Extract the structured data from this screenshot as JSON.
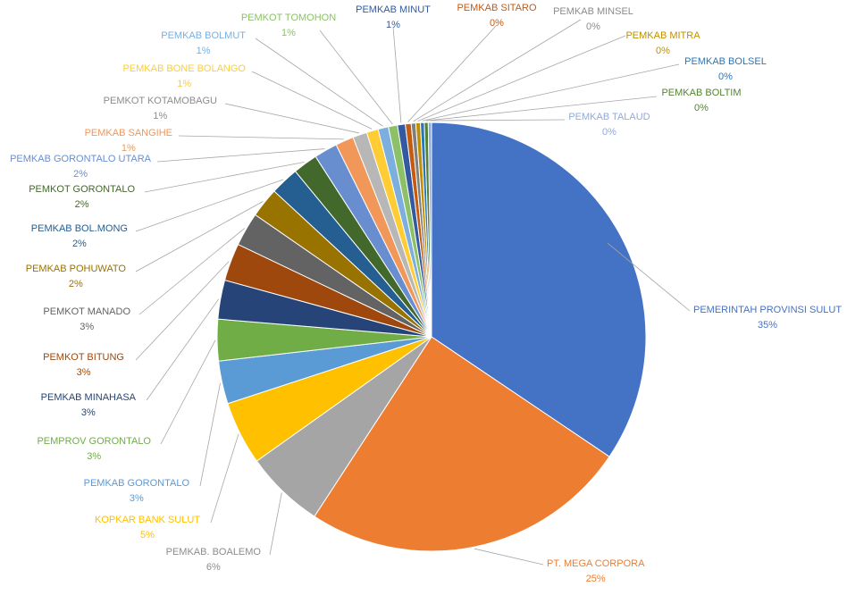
{
  "chart_data": {
    "type": "pie",
    "title": "",
    "legend": "none",
    "slices": [
      {
        "label": "PEMERINTAH PROVINSI SULUT",
        "pct_label": "35%",
        "value": 35.2,
        "color": "#4472C4"
      },
      {
        "label": "PT. MEGA CORPORA",
        "pct_label": "25%",
        "value": 25.3,
        "color": "#ED7D31"
      },
      {
        "label": "PEMKAB. BOALEMO",
        "pct_label": "6%",
        "value": 6.1,
        "color": "#A5A5A5"
      },
      {
        "label": "KOPKAR BANK SULUT",
        "pct_label": "5%",
        "value": 4.9,
        "color": "#FFC000"
      },
      {
        "label": "PEMKAB GORONTALO",
        "pct_label": "3%",
        "value": 3.3,
        "color": "#5B9BD5"
      },
      {
        "label": "PEMPROV GORONTALO",
        "pct_label": "3%",
        "value": 3.2,
        "color": "#70AD47"
      },
      {
        "label": "PEMKAB MINAHASA",
        "pct_label": "3%",
        "value": 3.0,
        "color": "#264478"
      },
      {
        "label": "PEMKOT BITUNG",
        "pct_label": "3%",
        "value": 2.9,
        "color": "#9E480E"
      },
      {
        "label": "PEMKOT MANADO",
        "pct_label": "3%",
        "value": 2.6,
        "color": "#636363"
      },
      {
        "label": "PEMKAB POHUWATO",
        "pct_label": "2%",
        "value": 2.3,
        "color": "#997300"
      },
      {
        "label": "PEMKAB BOL.MONG",
        "pct_label": "2%",
        "value": 2.2,
        "color": "#255E91"
      },
      {
        "label": "PEMKOT GORONTALO",
        "pct_label": "2%",
        "value": 1.9,
        "color": "#43682B"
      },
      {
        "label": "PEMKAB GORONTALO UTARA",
        "pct_label": "2%",
        "value": 1.8,
        "color": "#698ED0"
      },
      {
        "label": "PEMKAB SANGIHE",
        "pct_label": "1%",
        "value": 1.4,
        "color": "#F1975A"
      },
      {
        "label": "PEMKOT KOTAMOBAGU",
        "pct_label": "1%",
        "value": 1.1,
        "color": "#B7B7B7"
      },
      {
        "label": "PEMKAB BONE BOLANGO",
        "pct_label": "1%",
        "value": 0.9,
        "color": "#FFCD33"
      },
      {
        "label": "PEMKAB BOLMUT",
        "pct_label": "1%",
        "value": 0.8,
        "color": "#7CAFDD"
      },
      {
        "label": "PEMKOT TOMOHON",
        "pct_label": "1%",
        "value": 0.7,
        "color": "#8CC168"
      },
      {
        "label": "PEMKAB MINUT",
        "pct_label": "1%",
        "value": 0.6,
        "color": "#335AA1"
      },
      {
        "label": "PEMKAB SITARO",
        "pct_label": "0%",
        "value": 0.45,
        "color": "#C55A11"
      },
      {
        "label": "PEMKAB MINSEL",
        "pct_label": "0%",
        "value": 0.35,
        "color": "#7F7F7F"
      },
      {
        "label": "PEMKAB MITRA",
        "pct_label": "0%",
        "value": 0.35,
        "color": "#BF8F00"
      },
      {
        "label": "PEMKAB BOLSEL",
        "pct_label": "0%",
        "value": 0.3,
        "color": "#2E75B6"
      },
      {
        "label": "PEMKAB BOLTIM",
        "pct_label": "0%",
        "value": 0.3,
        "color": "#548235"
      },
      {
        "label": "PEMKAB TALAUD",
        "pct_label": "0%",
        "value": 0.25,
        "color": "#8FAADC"
      }
    ]
  }
}
